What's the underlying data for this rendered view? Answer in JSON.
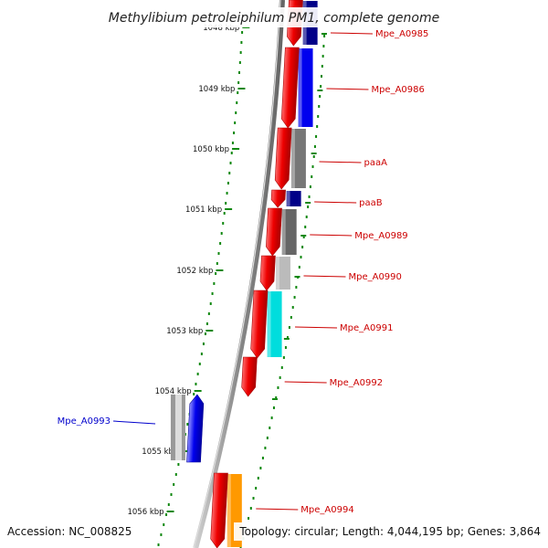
{
  "title": "Methylibium petroleiphilum PM1, complete genome",
  "accession": "Accession: NC_008825",
  "topology": "Topology: circular; Length: 4,044,195 bp; Genes: 3,864",
  "colors": {
    "forward": "#ee0000",
    "tick": "#118811",
    "backbone": "#888888",
    "label_forward": "#cc0000",
    "label_reverse": "#0000cc"
  },
  "ticks": [
    {
      "label": "1048 kbp"
    },
    {
      "label": "1049 kbp"
    },
    {
      "label": "1050 kbp"
    },
    {
      "label": "1051 kbp"
    },
    {
      "label": "1052 kbp"
    },
    {
      "label": "1053 kbp"
    },
    {
      "label": "1054 kbp"
    },
    {
      "label": "1055 kbp"
    },
    {
      "label": "1056 kbp"
    }
  ],
  "genes": [
    {
      "label": "Mpe_A0985",
      "strand": "forward",
      "cog_color": "#000088"
    },
    {
      "label": "Mpe_A0986",
      "strand": "forward",
      "cog_color": "#0000ee"
    },
    {
      "label": "paaA",
      "strand": "forward",
      "cog_color": "#777777"
    },
    {
      "label": "paaB",
      "strand": "forward",
      "cog_color": "#000088"
    },
    {
      "label": "Mpe_A0989",
      "strand": "forward",
      "cog_color": "#666666"
    },
    {
      "label": "Mpe_A0990",
      "strand": "forward",
      "cog_color": "#bbbbbb"
    },
    {
      "label": "Mpe_A0991",
      "strand": "forward",
      "cog_color": "#00dddd"
    },
    {
      "label": "Mpe_A0992",
      "strand": "forward",
      "cog_color": ""
    },
    {
      "label": "Mpe_A0993",
      "strand": "reverse",
      "cog_color": "#0000ee"
    },
    {
      "label": "Mpe_A0994",
      "strand": "forward",
      "cog_color": "#ff9900"
    }
  ]
}
